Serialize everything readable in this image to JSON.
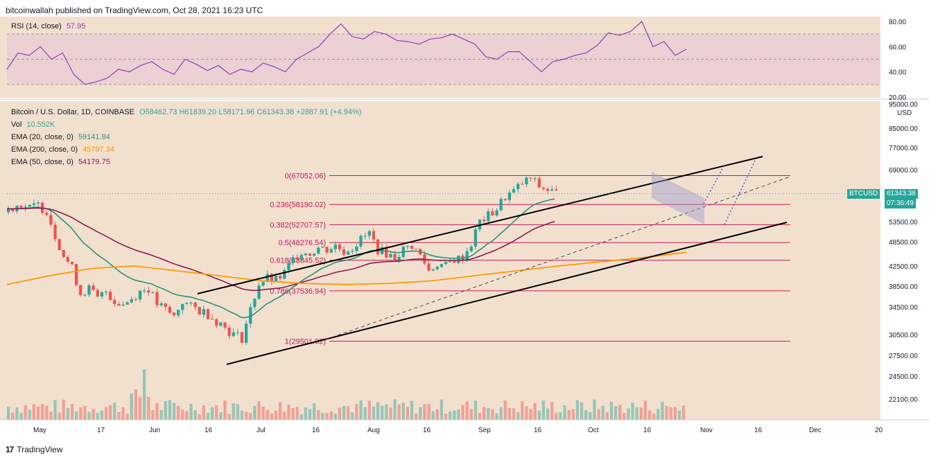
{
  "header": {
    "published": "bitcoinwallah published on TradingView.com, Oct 28, 2021 16:23 UTC"
  },
  "footer": {
    "brand": "TradingView"
  },
  "colors": {
    "bg": "#f2e0cf",
    "rsi": "#8e3cbf",
    "ema20": "#2a8f7f",
    "ema200": "#ff9800",
    "ema50": "#8a1a4f",
    "fib": "#c2185b",
    "up": "#26a69a",
    "down": "#ef5350",
    "tag": "#26a69a"
  },
  "rsi_panel": {
    "label": "RSI (14, close)",
    "value": "57.95",
    "ticks": [
      "80.00",
      "60.00",
      "40.00",
      "20.00"
    ]
  },
  "legend": {
    "symbol": "Bitcoin / U.S. Dollar, 1D, COINBASE",
    "ohlc": "O58462.73 H61839.20 L58171.96 C61343.38 +2887.91 (+4.94%)",
    "vol_label": "Vol",
    "vol_value": "10.552K",
    "ema20_label": "EMA (20, close, 0)",
    "ema20_value": "59141.84",
    "ema200_label": "EMA (200, close, 0)",
    "ema200_value": "45797.34",
    "ema50_label": "EMA (50, close, 0)",
    "ema50_value": "54179.75"
  },
  "price_axis": {
    "currency": "USD",
    "ticks": [
      "95000.00",
      "85000.00",
      "77000.00",
      "69000.00",
      "53500.00",
      "48500.00",
      "42500.00",
      "38500.00",
      "34500.00",
      "30500.00",
      "27500.00",
      "24500.00",
      "22100.00"
    ],
    "last_label": "BTCUSD",
    "last_price": "61343.38",
    "countdown": "07:36:49"
  },
  "time_axis": {
    "ticks": [
      "May",
      "17",
      "Jun",
      "16",
      "Jul",
      "16",
      "Aug",
      "16",
      "Sep",
      "16",
      "Oct",
      "16",
      "Nov",
      "16",
      "Dec",
      "20"
    ]
  },
  "chart_data": {
    "type": "candlestick",
    "title": "Bitcoin / U.S. Dollar, 1D, COINBASE",
    "fib_levels": [
      {
        "label": "0(67052.06)",
        "value": 67052.06
      },
      {
        "label": "0.236(58190.02)",
        "value": 58190.02
      },
      {
        "label": "0.382(52707.57)",
        "value": 52707.57
      },
      {
        "label": "0.5(48276.54)",
        "value": 48276.54
      },
      {
        "label": "0.618(43845.52)",
        "value": 43845.52
      },
      {
        "label": "0.786(37536.94)",
        "value": 37536.94
      },
      {
        "label": "1(29501.02)",
        "value": 29501.02
      }
    ],
    "last_close": 61343.38,
    "price_series_approx": [
      56000,
      57500,
      58500,
      57000,
      58000,
      56500,
      50000,
      45000,
      42000,
      37000,
      38000,
      36000,
      37500,
      35500,
      35000,
      36000,
      37500,
      38000,
      35000,
      34000,
      33000,
      35500,
      34500,
      34000,
      33500,
      32500,
      31500,
      30500,
      30000,
      34000,
      39000,
      40000,
      39500,
      41000,
      44000,
      46000,
      45500,
      47000,
      46500,
      47500,
      46000,
      47000,
      49000,
      50500,
      46500,
      45500,
      44500,
      46500,
      47500,
      45000,
      41500,
      43000,
      42500,
      44000,
      44500,
      48000,
      53500,
      55000,
      57000,
      60500,
      62000,
      64500,
      66000,
      63500,
      62500,
      61343
    ],
    "rsi_series_approx": [
      42,
      55,
      53,
      60,
      50,
      55,
      38,
      30,
      32,
      35,
      42,
      40,
      45,
      48,
      42,
      38,
      50,
      46,
      41,
      45,
      38,
      42,
      40,
      47,
      44,
      40,
      50,
      55,
      60,
      70,
      78,
      68,
      66,
      72,
      70,
      65,
      64,
      62,
      66,
      67,
      70,
      66,
      62,
      52,
      50,
      56,
      56,
      48,
      40,
      48,
      50,
      53,
      55,
      61,
      71,
      69,
      72,
      80,
      60,
      64,
      53,
      58
    ]
  }
}
